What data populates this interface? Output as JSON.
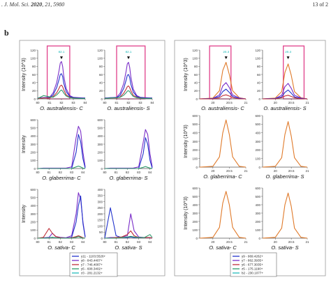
{
  "header": {
    "journal": ". J. Mol. Sci.",
    "year": "2020",
    "volume": ", 21, ",
    "article": "5980",
    "page": "13 of 2"
  },
  "panel_letter": "b",
  "colors": {
    "blue": "#2233cc",
    "purple": "#7a2ec8",
    "red": "#c0303a",
    "green": "#2e9a6a",
    "cyan": "#22bbbb",
    "orange": "#e07a2a",
    "pink": "#e0408a"
  },
  "left_legend": [
    "y11 - 1103.5526+",
    "y8 - 843.4407+",
    "y7 - 746.4087+",
    "y5 - 608.3402+",
    "z3 - 281.2132+"
  ],
  "right_legend": [
    "y9 - 969.4262+",
    "y7 - 862.3935+",
    "y6 - 677.3035+",
    "z5 - 175.1190+",
    "b2 - 230.1077+"
  ],
  "chart_data": [
    {
      "type": "line",
      "title": "O. australiensis- C",
      "ylabel": "Intensity (10^3)",
      "x": [
        80.0,
        80.5,
        81.0,
        81.3,
        81.6,
        81.8,
        81.9,
        82.0,
        82.1,
        82.2,
        82.4,
        82.7,
        83.0,
        83.5,
        84.0
      ],
      "xticks": [
        80,
        81,
        82,
        83,
        84
      ],
      "ylim": [
        0,
        120
      ],
      "yticks": [
        0,
        20,
        40,
        60,
        80,
        100,
        120
      ],
      "annotation": "82.1",
      "series": [
        {
          "color": "purple",
          "values": [
            2,
            3,
            4,
            15,
            40,
            70,
            88,
            92,
            80,
            55,
            25,
            8,
            4,
            3,
            2
          ]
        },
        {
          "color": "blue",
          "values": [
            2,
            3,
            3,
            10,
            28,
            48,
            60,
            62,
            55,
            38,
            18,
            6,
            3,
            2,
            2
          ]
        },
        {
          "color": "red",
          "values": [
            1,
            2,
            2,
            6,
            15,
            26,
            32,
            34,
            30,
            22,
            10,
            4,
            2,
            1,
            1
          ]
        },
        {
          "color": "green",
          "values": [
            1,
            8,
            5,
            4,
            10,
            16,
            20,
            22,
            19,
            14,
            7,
            3,
            2,
            1,
            1
          ]
        }
      ]
    },
    {
      "type": "line",
      "title": "O. australiensis- S",
      "ylabel": "",
      "x": [
        80.0,
        80.5,
        81.0,
        81.3,
        81.6,
        81.8,
        81.9,
        82.0,
        82.1,
        82.2,
        82.4,
        82.7,
        83.0,
        83.5,
        84.0
      ],
      "xticks": [
        80,
        81,
        82,
        83,
        84
      ],
      "ylim": [
        0,
        120
      ],
      "yticks": [
        0,
        20,
        40,
        60,
        80,
        100,
        120
      ],
      "annotation": "82.1",
      "series": [
        {
          "color": "purple",
          "values": [
            2,
            3,
            4,
            14,
            38,
            68,
            86,
            90,
            78,
            54,
            24,
            8,
            4,
            3,
            2
          ]
        },
        {
          "color": "blue",
          "values": [
            2,
            3,
            3,
            9,
            26,
            46,
            58,
            60,
            53,
            36,
            17,
            6,
            3,
            2,
            2
          ]
        },
        {
          "color": "red",
          "values": [
            1,
            2,
            2,
            5,
            14,
            24,
            30,
            32,
            28,
            20,
            9,
            4,
            2,
            1,
            1
          ]
        },
        {
          "color": "green",
          "values": [
            1,
            2,
            3,
            4,
            9,
            15,
            19,
            20,
            18,
            13,
            6,
            3,
            2,
            1,
            1
          ]
        }
      ]
    },
    {
      "type": "line",
      "title": "O. glaberrima- C",
      "ylabel": "Intensity",
      "x": [
        80.0,
        80.5,
        81.0,
        81.5,
        82.0,
        82.5,
        83.0,
        83.4,
        83.6,
        83.8,
        84.0,
        84.2
      ],
      "xticks": [
        80,
        81,
        82,
        83,
        84
      ],
      "ylim": [
        0,
        600
      ],
      "yticks": [
        0,
        100,
        200,
        300,
        400,
        500,
        600
      ],
      "series": [
        {
          "color": "purple",
          "values": [
            0,
            5,
            5,
            5,
            5,
            5,
            20,
            380,
            520,
            460,
            200,
            20
          ]
        },
        {
          "color": "blue",
          "values": [
            0,
            0,
            0,
            0,
            0,
            0,
            0,
            200,
            420,
            330,
            120,
            5
          ]
        },
        {
          "color": "green",
          "values": [
            0,
            0,
            0,
            0,
            0,
            0,
            0,
            20,
            30,
            20,
            5,
            0
          ]
        }
      ]
    },
    {
      "type": "line",
      "title": "O. glaberrima- S",
      "ylabel": "",
      "x": [
        80.0,
        80.5,
        81.0,
        81.5,
        82.0,
        82.5,
        83.0,
        83.4,
        83.6,
        83.8,
        84.0,
        84.2
      ],
      "xticks": [
        80,
        81,
        82,
        83,
        84
      ],
      "ylim": [
        0,
        600
      ],
      "yticks": [
        0,
        100,
        200,
        300,
        400,
        500,
        600
      ],
      "series": [
        {
          "color": "purple",
          "values": [
            0,
            5,
            5,
            5,
            5,
            5,
            20,
            320,
            480,
            420,
            180,
            20
          ]
        },
        {
          "color": "blue",
          "values": [
            0,
            0,
            0,
            0,
            0,
            0,
            0,
            180,
            380,
            300,
            100,
            5
          ]
        },
        {
          "color": "green",
          "values": [
            0,
            0,
            0,
            0,
            0,
            0,
            0,
            15,
            25,
            15,
            5,
            0
          ]
        }
      ]
    },
    {
      "type": "line",
      "title": "O. sativa- C",
      "ylabel": "Intensity",
      "x": [
        80.0,
        80.5,
        81.0,
        81.3,
        81.6,
        82.0,
        82.5,
        83.0,
        83.4,
        83.6,
        83.8,
        84.0,
        84.2
      ],
      "xticks": [
        80,
        81,
        82,
        83,
        84
      ],
      "ylim": [
        0,
        600
      ],
      "yticks": [
        0,
        100,
        200,
        300,
        400,
        500,
        600
      ],
      "series": [
        {
          "color": "purple",
          "values": [
            0,
            5,
            10,
            60,
            20,
            10,
            5,
            30,
            300,
            560,
            480,
            200,
            20
          ]
        },
        {
          "color": "blue",
          "values": [
            0,
            0,
            5,
            10,
            5,
            5,
            0,
            10,
            200,
            400,
            520,
            180,
            10
          ]
        },
        {
          "color": "red",
          "values": [
            0,
            10,
            120,
            60,
            20,
            5,
            0,
            5,
            20,
            30,
            20,
            5,
            0
          ]
        },
        {
          "color": "green",
          "values": [
            0,
            0,
            5,
            10,
            5,
            0,
            0,
            0,
            10,
            20,
            10,
            0,
            0
          ]
        }
      ]
    },
    {
      "type": "line",
      "title": "O. sativa- S",
      "ylabel": "",
      "x": [
        80.0,
        80.5,
        81.0,
        81.5,
        82.0,
        82.3,
        82.6,
        83.0,
        83.5,
        84.0,
        84.2
      ],
      "xticks": [
        80,
        81,
        82,
        83,
        84
      ],
      "ylim": [
        0,
        400
      ],
      "yticks": [
        0,
        50,
        100,
        150,
        200,
        250,
        300,
        350,
        400
      ],
      "series": [
        {
          "color": "blue",
          "values": [
            0,
            250,
            20,
            5,
            5,
            10,
            5,
            5,
            5,
            5,
            0
          ]
        },
        {
          "color": "purple",
          "values": [
            0,
            5,
            5,
            10,
            20,
            200,
            60,
            10,
            5,
            5,
            0
          ]
        },
        {
          "color": "red",
          "values": [
            0,
            0,
            5,
            10,
            30,
            60,
            20,
            5,
            5,
            5,
            0
          ]
        },
        {
          "color": "green",
          "values": [
            0,
            0,
            0,
            5,
            10,
            15,
            10,
            5,
            5,
            30,
            5
          ]
        }
      ]
    },
    {
      "type": "line",
      "title": "O. australiensis- C",
      "ylabel": "Intensity (10^3)",
      "x": [
        19.6,
        20.0,
        20.2,
        20.3,
        20.4,
        20.5,
        20.6,
        20.8,
        21.0
      ],
      "xticks": [
        20.0,
        20.5,
        21.0
      ],
      "ylim": [
        0,
        120
      ],
      "yticks": [
        0,
        20,
        40,
        60,
        80,
        100,
        120
      ],
      "annotation": "20.3",
      "series": [
        {
          "color": "orange",
          "values": [
            0,
            2,
            20,
            70,
            90,
            60,
            20,
            3,
            0
          ]
        },
        {
          "color": "purple",
          "values": [
            0,
            1,
            10,
            32,
            40,
            28,
            10,
            2,
            0
          ]
        },
        {
          "color": "blue",
          "values": [
            0,
            1,
            6,
            18,
            24,
            16,
            6,
            1,
            0
          ]
        },
        {
          "color": "red",
          "values": [
            0,
            0,
            3,
            8,
            10,
            7,
            3,
            0,
            0
          ]
        }
      ]
    },
    {
      "type": "line",
      "title": "O. australiensis- S",
      "ylabel": "",
      "x": [
        19.6,
        20.0,
        20.2,
        20.3,
        20.4,
        20.5,
        20.6,
        20.8,
        21.0
      ],
      "xticks": [
        20.0,
        20.5,
        21.0
      ],
      "ylim": [
        0,
        120
      ],
      "yticks": [
        0,
        20,
        40,
        60,
        80,
        100,
        120
      ],
      "annotation": "20.3",
      "series": [
        {
          "color": "orange",
          "values": [
            0,
            2,
            18,
            65,
            86,
            58,
            18,
            3,
            0
          ]
        },
        {
          "color": "purple",
          "values": [
            0,
            1,
            9,
            30,
            38,
            26,
            9,
            2,
            0
          ]
        },
        {
          "color": "blue",
          "values": [
            0,
            1,
            5,
            16,
            22,
            14,
            5,
            1,
            0
          ]
        },
        {
          "color": "red",
          "values": [
            0,
            0,
            3,
            7,
            9,
            6,
            3,
            0,
            0
          ]
        }
      ]
    },
    {
      "type": "line",
      "title": "O. glaberrima- C",
      "ylabel": "Intensity (10^3)",
      "x": [
        19.6,
        20.0,
        20.2,
        20.3,
        20.4,
        20.5,
        20.6,
        20.8,
        21.0
      ],
      "xticks": [
        20.0,
        20.5,
        21.0
      ],
      "ylim": [
        0,
        600
      ],
      "yticks": [
        0,
        100,
        200,
        300,
        400,
        500,
        600
      ],
      "series": [
        {
          "color": "orange",
          "values": [
            0,
            10,
            120,
            400,
            550,
            380,
            120,
            10,
            0
          ]
        }
      ]
    },
    {
      "type": "line",
      "title": "O. glaberrima- S",
      "ylabel": "",
      "x": [
        19.6,
        20.0,
        20.2,
        20.3,
        20.4,
        20.5,
        20.6,
        20.8,
        21.0
      ],
      "xticks": [
        20.0,
        20.5,
        21.0
      ],
      "ylim": [
        0,
        600
      ],
      "yticks": [
        0,
        100,
        200,
        300,
        400,
        500,
        600
      ],
      "series": [
        {
          "color": "orange",
          "values": [
            0,
            10,
            110,
            380,
            530,
            360,
            110,
            10,
            0
          ]
        }
      ]
    },
    {
      "type": "line",
      "title": "O. sativa- C",
      "ylabel": "Intensity (10^3)",
      "x": [
        19.6,
        20.0,
        20.2,
        20.3,
        20.4,
        20.5,
        20.6,
        20.8,
        21.0
      ],
      "xticks": [
        20.0,
        20.5,
        21.0
      ],
      "ylim": [
        0,
        600
      ],
      "yticks": [
        0,
        100,
        200,
        300,
        400,
        500,
        600
      ],
      "series": [
        {
          "color": "orange",
          "values": [
            0,
            10,
            130,
            420,
            560,
            400,
            130,
            10,
            0
          ]
        }
      ]
    },
    {
      "type": "line",
      "title": "O. sativa- S",
      "ylabel": "",
      "x": [
        19.6,
        20.0,
        20.2,
        20.3,
        20.4,
        20.5,
        20.6,
        20.8,
        21.0
      ],
      "xticks": [
        20.0,
        20.5,
        21.0
      ],
      "ylim": [
        0,
        600
      ],
      "yticks": [
        0,
        100,
        200,
        300,
        400,
        500,
        600
      ],
      "series": [
        {
          "color": "orange",
          "values": [
            0,
            10,
            120,
            400,
            540,
            380,
            120,
            10,
            0
          ]
        }
      ]
    }
  ]
}
